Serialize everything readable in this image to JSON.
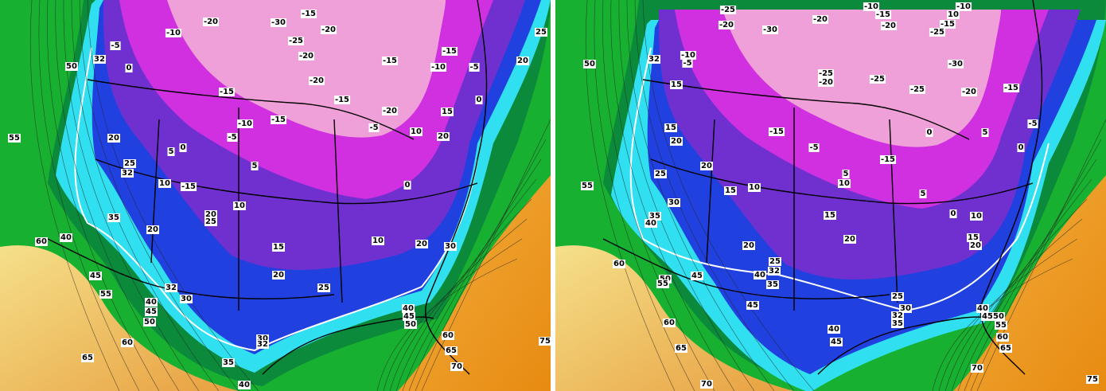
{
  "panels": [
    {
      "labels": [
        "50",
        "55",
        "60",
        "40",
        "32",
        "0",
        "-5",
        "-10",
        "-20",
        "-30",
        "-15",
        "-25",
        "-20",
        "-20",
        "-20",
        "-15",
        "-15",
        "-20",
        "-15",
        "-10",
        "-15",
        "-5",
        "20",
        "0",
        "15",
        "20",
        "10",
        "-5",
        "-15",
        "-10",
        "-5",
        "5",
        "0",
        "5",
        "32",
        "25",
        "20",
        "10",
        "-15",
        "20",
        "25",
        "10",
        "0",
        "10",
        "20",
        "15",
        "20",
        "20",
        "32",
        "30",
        "25",
        "40",
        "45",
        "50",
        "55",
        "45",
        "60",
        "65",
        "35",
        "30",
        "32",
        "40",
        "40",
        "45",
        "50",
        "30",
        "60",
        "65",
        "70",
        "25",
        "75",
        "35"
      ]
    },
    {
      "labels": [
        "50",
        "55",
        "60",
        "32",
        "-10",
        "-5",
        "15",
        "15",
        "20",
        "25",
        "30",
        "35",
        "40",
        "45",
        "50",
        "55",
        "20",
        "15",
        "10",
        "20",
        "40",
        "35",
        "25",
        "32",
        "45",
        "-25",
        "-20",
        "-30",
        "-20",
        "-10",
        "-15",
        "-20",
        "-25",
        "10",
        "-15",
        "-10",
        "-30",
        "-25",
        "-20",
        "-25",
        "-25",
        "-20",
        "-15",
        "-5",
        "0",
        "5",
        "0",
        "-15",
        "-5",
        "-15",
        "5",
        "10",
        "15",
        "5",
        "0",
        "10",
        "15",
        "20",
        "20",
        "25",
        "30",
        "32",
        "35",
        "40",
        "45",
        "50",
        "55",
        "60",
        "65",
        "70",
        "75",
        "40",
        "45",
        "60",
        "65",
        "70"
      ]
    }
  ]
}
